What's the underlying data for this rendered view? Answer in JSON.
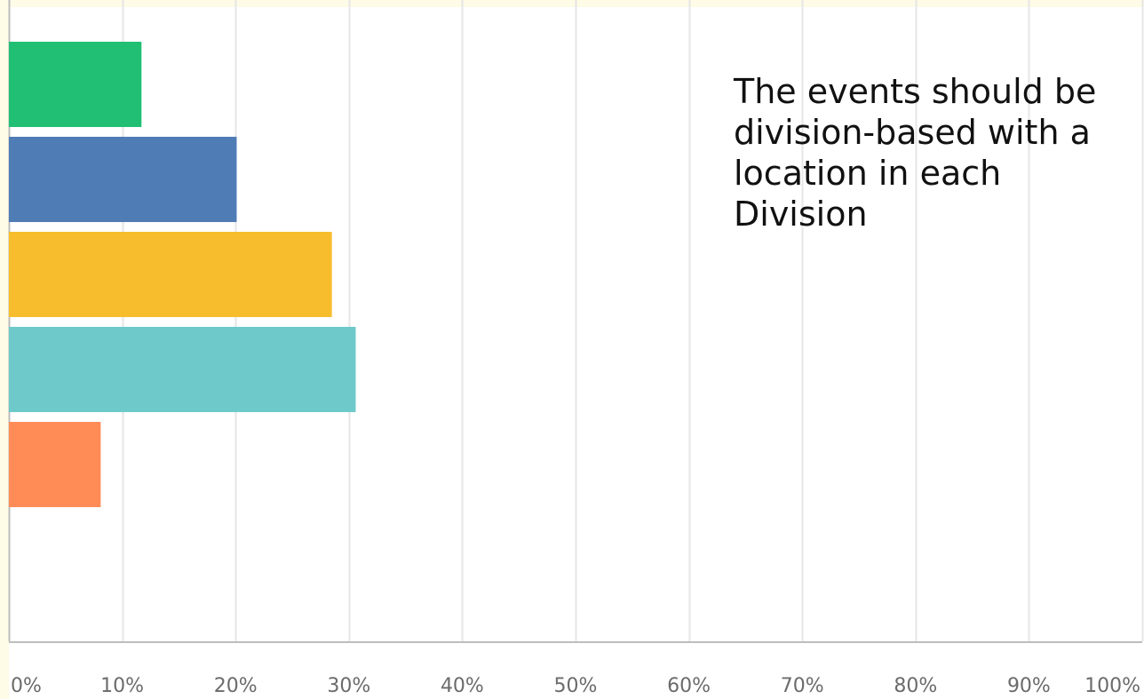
{
  "chart_data": {
    "type": "bar",
    "orientation": "horizontal",
    "annotation": "The events should be division-based with a location in each Division",
    "x_ticks": [
      "0%",
      "10%",
      "20%",
      "30%",
      "40%",
      "50%",
      "60%",
      "70%",
      "80%",
      "90%",
      "100%"
    ],
    "xlim": [
      0,
      100
    ],
    "grid": true,
    "bars": [
      {
        "value": 11.7,
        "color": "#21bf73"
      },
      {
        "value": 20.1,
        "color": "#507cb6"
      },
      {
        "value": 28.5,
        "color": "#f7bd2d"
      },
      {
        "value": 30.6,
        "color": "#6dc9ca"
      },
      {
        "value": 8.1,
        "color": "#ff8b57"
      }
    ]
  }
}
